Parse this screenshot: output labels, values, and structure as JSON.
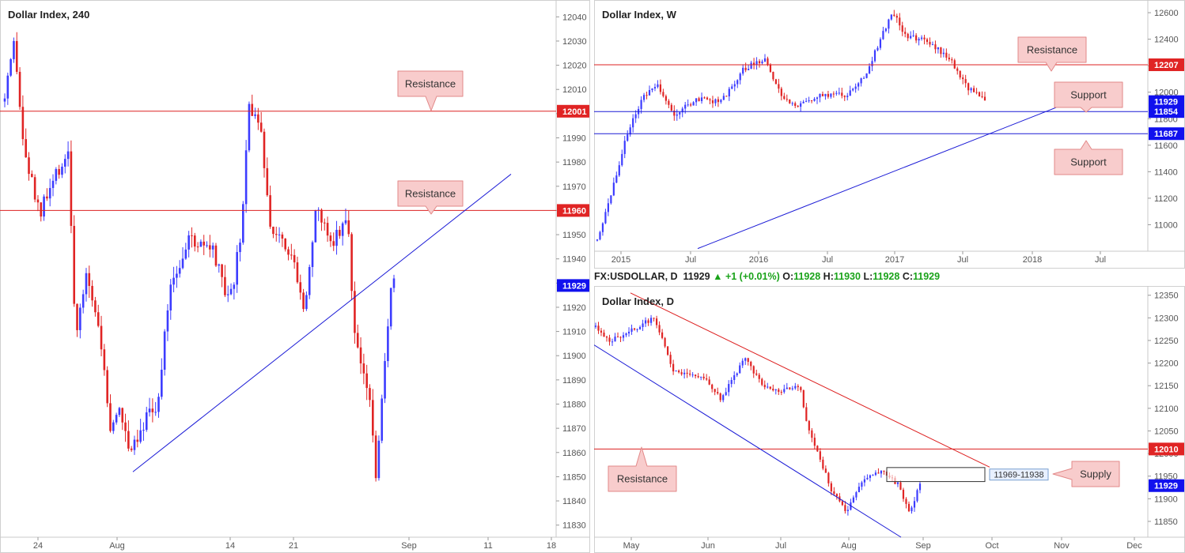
{
  "colors": {
    "bull": "#3c3cff",
    "bear": "#e02424",
    "resistance_line": "#dd2020",
    "support_line": "#1a1ad6",
    "callout_fill": "#f8cccc",
    "callout_stroke": "#e28888",
    "price_badge": "#1111ee",
    "axis_text": "#555555"
  },
  "chart_data": [
    {
      "id": "h4",
      "type": "candlestick",
      "title": "Dollar Index, 240",
      "ylim": [
        11825,
        12045
      ],
      "y_ticks": [
        11830,
        11840,
        11850,
        11860,
        11870,
        11880,
        11890,
        11900,
        11910,
        11920,
        11930,
        11940,
        11950,
        11960,
        11970,
        11980,
        11990,
        12000,
        12010,
        12020,
        12030,
        12040
      ],
      "x_ticks": [
        "24",
        "Aug",
        "14",
        "21",
        "Sep",
        "11",
        "18"
      ],
      "price_labels": [
        {
          "value": 12001,
          "text": "12001",
          "color": "red"
        },
        {
          "value": 11960,
          "text": "11960",
          "color": "red"
        },
        {
          "value": 11929,
          "text": "11929",
          "color": "blue"
        }
      ],
      "horizontal_lines": [
        {
          "value": 12001,
          "kind": "resistance"
        },
        {
          "value": 11960,
          "kind": "resistance"
        }
      ],
      "trendlines": [
        {
          "kind": "support",
          "from": [
            "Aug",
            11852
          ],
          "to": [
            "Sep 11",
            11975
          ]
        }
      ],
      "annotations": [
        {
          "text": "Resistance"
        },
        {
          "text": "Resistance"
        }
      ]
    },
    {
      "id": "weekly",
      "type": "candlestick",
      "title": "Dollar Index, W",
      "ylim": [
        10800,
        12660
      ],
      "y_ticks": [
        11000,
        11200,
        11400,
        11600,
        11800,
        12000,
        12200,
        12400,
        12600
      ],
      "x_ticks": [
        "2015",
        "Jul",
        "2016",
        "Jul",
        "2017",
        "Jul",
        "2018",
        "Jul"
      ],
      "price_labels": [
        {
          "value": 12207,
          "text": "12207",
          "color": "red"
        },
        {
          "value": 11929,
          "text": "11929",
          "color": "blue"
        },
        {
          "value": 11854,
          "text": "11854",
          "color": "blue"
        },
        {
          "value": 11687,
          "text": "11687",
          "color": "blue"
        }
      ],
      "horizontal_lines": [
        {
          "value": 12207,
          "kind": "resistance"
        },
        {
          "value": 11854,
          "kind": "support"
        },
        {
          "value": 11687,
          "kind": "support"
        }
      ],
      "trendlines": [
        {
          "kind": "support",
          "from": [
            "2015 Jul",
            10820
          ],
          "to": [
            "2018 May",
            11950
          ]
        }
      ],
      "annotations": [
        {
          "text": "Resistance"
        },
        {
          "text": "Support"
        },
        {
          "text": "Support"
        }
      ]
    },
    {
      "id": "daily",
      "type": "candlestick",
      "title": "Dollar Index, D",
      "ylim": [
        11815,
        12360
      ],
      "y_ticks": [
        11850,
        11900,
        11950,
        12000,
        12050,
        12100,
        12150,
        12200,
        12250,
        12300,
        12350
      ],
      "x_ticks": [
        "May",
        "Jun",
        "Jul",
        "Aug",
        "Sep",
        "Oct",
        "Nov",
        "Dec"
      ],
      "price_labels": [
        {
          "value": 12010,
          "text": "12010",
          "color": "red"
        },
        {
          "value": 11929,
          "text": "11929",
          "color": "blue"
        }
      ],
      "horizontal_lines": [
        {
          "value": 12010,
          "kind": "resistance"
        }
      ],
      "trendlines": [
        {
          "kind": "resistance",
          "from": [
            "Apr end",
            12355
          ],
          "to": [
            "Sep end",
            11970
          ]
        },
        {
          "kind": "support",
          "from": [
            "Apr start",
            12240
          ],
          "to": [
            "Aug end",
            11815
          ]
        }
      ],
      "zones": [
        {
          "kind": "supply",
          "from": 11969,
          "to": 11938,
          "text": "11969-11938"
        }
      ],
      "annotations": [
        {
          "text": "Resistance"
        },
        {
          "text": "Supply"
        }
      ]
    }
  ],
  "daily_header": {
    "symbol": "FX:USDOLLAR, D",
    "last": "11929",
    "change": "+1 (+0.01%)",
    "o_label": "O:",
    "o": "11928",
    "h_label": "H:",
    "h": "11930",
    "l_label": "L:",
    "l": "11928",
    "c_label": "C:",
    "c": "11929"
  }
}
